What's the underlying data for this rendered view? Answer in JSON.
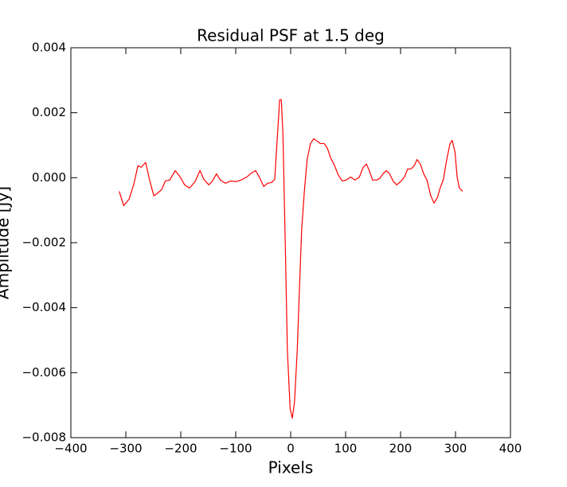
{
  "chart_data": {
    "type": "line",
    "title": "Residual PSF at 1.5 deg",
    "x_label": "Pixels",
    "y_label": "Amplitude [Jy]",
    "color": "#ff0000",
    "x": [
      -312,
      -304,
      -294,
      -285,
      -278,
      -272,
      -264,
      -257,
      -249,
      -242,
      -235,
      -228,
      -220,
      -210,
      -201,
      -193,
      -184,
      -174,
      -165,
      -158,
      -149,
      -143,
      -135,
      -128,
      -119,
      -109,
      -99,
      -90,
      -80,
      -71,
      -64,
      -57,
      -49,
      -42,
      -35,
      -29,
      -25,
      -20,
      -17,
      -14,
      -10,
      -6,
      -1,
      3,
      7,
      12,
      16,
      20,
      25,
      30,
      36,
      42,
      48,
      54,
      61,
      67,
      72,
      80,
      87,
      94,
      101,
      109,
      117,
      125,
      132,
      138,
      143,
      149,
      157,
      162,
      168,
      174,
      180,
      187,
      193,
      200,
      207,
      213,
      219,
      225,
      230,
      236,
      242,
      248,
      255,
      261,
      267,
      272,
      278,
      284,
      290,
      294,
      299,
      303,
      307,
      313
    ],
    "values": [
      -0.00042,
      -0.00086,
      -0.00066,
      -0.00017,
      0.00037,
      0.00032,
      0.00047,
      -5e-05,
      -0.00056,
      -0.00047,
      -0.00037,
      -0.0001,
      -7e-05,
      0.00022,
      2e-05,
      -0.00022,
      -0.00032,
      -0.00012,
      0.00022,
      -5e-05,
      -0.00022,
      -0.00012,
      0.00012,
      -7e-05,
      -0.00017,
      -0.0001,
      -0.00012,
      -7e-05,
      2e-05,
      0.00015,
      0.00022,
      2e-05,
      -0.00027,
      -0.00017,
      -0.00015,
      -5e-05,
      0.00105,
      0.0024,
      0.0024,
      0.0013,
      -0.0019,
      -0.0053,
      -0.0071,
      -0.0074,
      -0.0069,
      -0.0053,
      -0.0034,
      -0.0016,
      -0.0004,
      0.00056,
      0.00105,
      0.0012,
      0.00113,
      0.00105,
      0.00105,
      0.0009,
      0.00064,
      0.00037,
      7e-05,
      -0.0001,
      -7e-05,
      2e-05,
      -7e-05,
      2e-05,
      0.00032,
      0.00042,
      0.00022,
      -7e-05,
      -7e-05,
      -2e-05,
      0.00012,
      0.00022,
      0.00012,
      -0.00012,
      -0.00022,
      -0.00012,
      2e-05,
      0.00027,
      0.00027,
      0.00037,
      0.00056,
      0.00042,
      0.00012,
      -7e-05,
      -0.00056,
      -0.00078,
      -0.00061,
      -0.00032,
      -5e-05,
      0.00056,
      0.00105,
      0.00115,
      0.0008,
      2e-05,
      -0.00032,
      -0.00042
    ],
    "xlim": [
      -400,
      400
    ],
    "xticks": [
      {
        "value": -400,
        "label": "−400"
      },
      {
        "value": -300,
        "label": "−300"
      },
      {
        "value": -200,
        "label": "−200"
      },
      {
        "value": -100,
        "label": "−100"
      },
      0,
      100,
      200,
      300,
      400
    ],
    "ylim": [
      -0.008,
      0.004
    ],
    "yticks": [
      {
        "value": -0.008,
        "label": "−0.008"
      },
      {
        "value": -0.006,
        "label": "−0.006"
      },
      {
        "value": -0.004,
        "label": "−0.004"
      },
      {
        "value": -0.002,
        "label": "−0.002"
      },
      {
        "value": 0,
        "label": "0.000"
      },
      0.002,
      0.004
    ]
  }
}
